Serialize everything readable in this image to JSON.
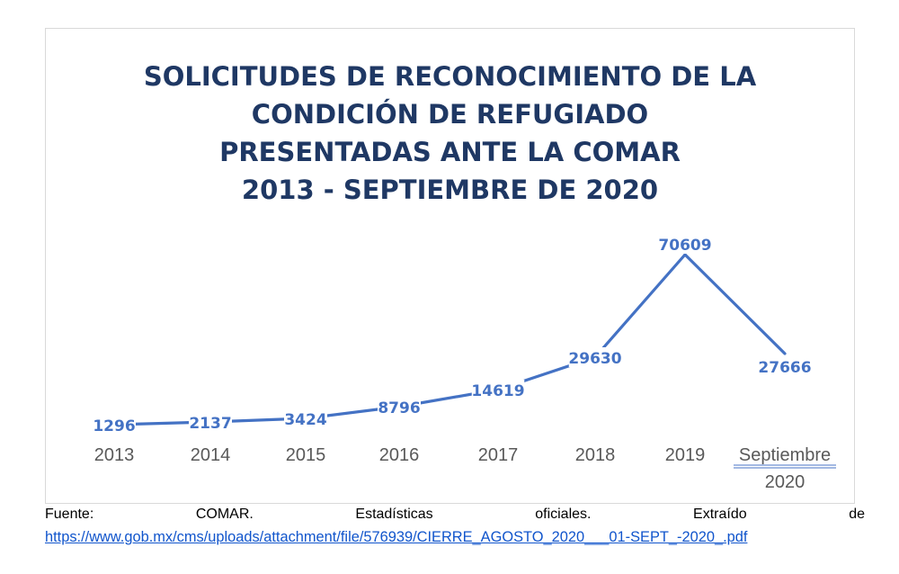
{
  "chart_data": {
    "type": "line",
    "title_lines": [
      "SOLICITUDES DE RECONOCIMIENTO DE LA",
      "CONDICIÓN DE REFUGIADO",
      "PRESENTADAS ANTE LA COMAR",
      "2013 - SEPTIEMBRE DE 2020"
    ],
    "categories": [
      "2013",
      "2014",
      "2015",
      "2016",
      "2017",
      "2018",
      "2019",
      "Septiembre 2020"
    ],
    "category_lines": [
      [
        "2013"
      ],
      [
        "2014"
      ],
      [
        "2015"
      ],
      [
        "2016"
      ],
      [
        "2017"
      ],
      [
        "2018"
      ],
      [
        "2019"
      ],
      [
        "Septiembre",
        "2020"
      ]
    ],
    "values": [
      1296,
      2137,
      3424,
      8796,
      14619,
      29630,
      70609,
      27666
    ],
    "data_labels": [
      "1296",
      "2137",
      "3424",
      "8796",
      "14619",
      "29630",
      "70609",
      "27666"
    ],
    "line_color": "#4472c4",
    "label_color": "#4472c4",
    "title_color": "#1f3864",
    "axis_label_color": "#595959",
    "grid": false,
    "legend": "none"
  },
  "footer": {
    "source_words": [
      "Fuente:",
      "COMAR.",
      "Estadísticas",
      "oficiales.",
      "Extraído",
      "de"
    ],
    "link": "https://www.gob.mx/cms/uploads/attachment/file/576939/CIERRE_AGOSTO_2020___01-SEPT_-2020_.pdf"
  }
}
